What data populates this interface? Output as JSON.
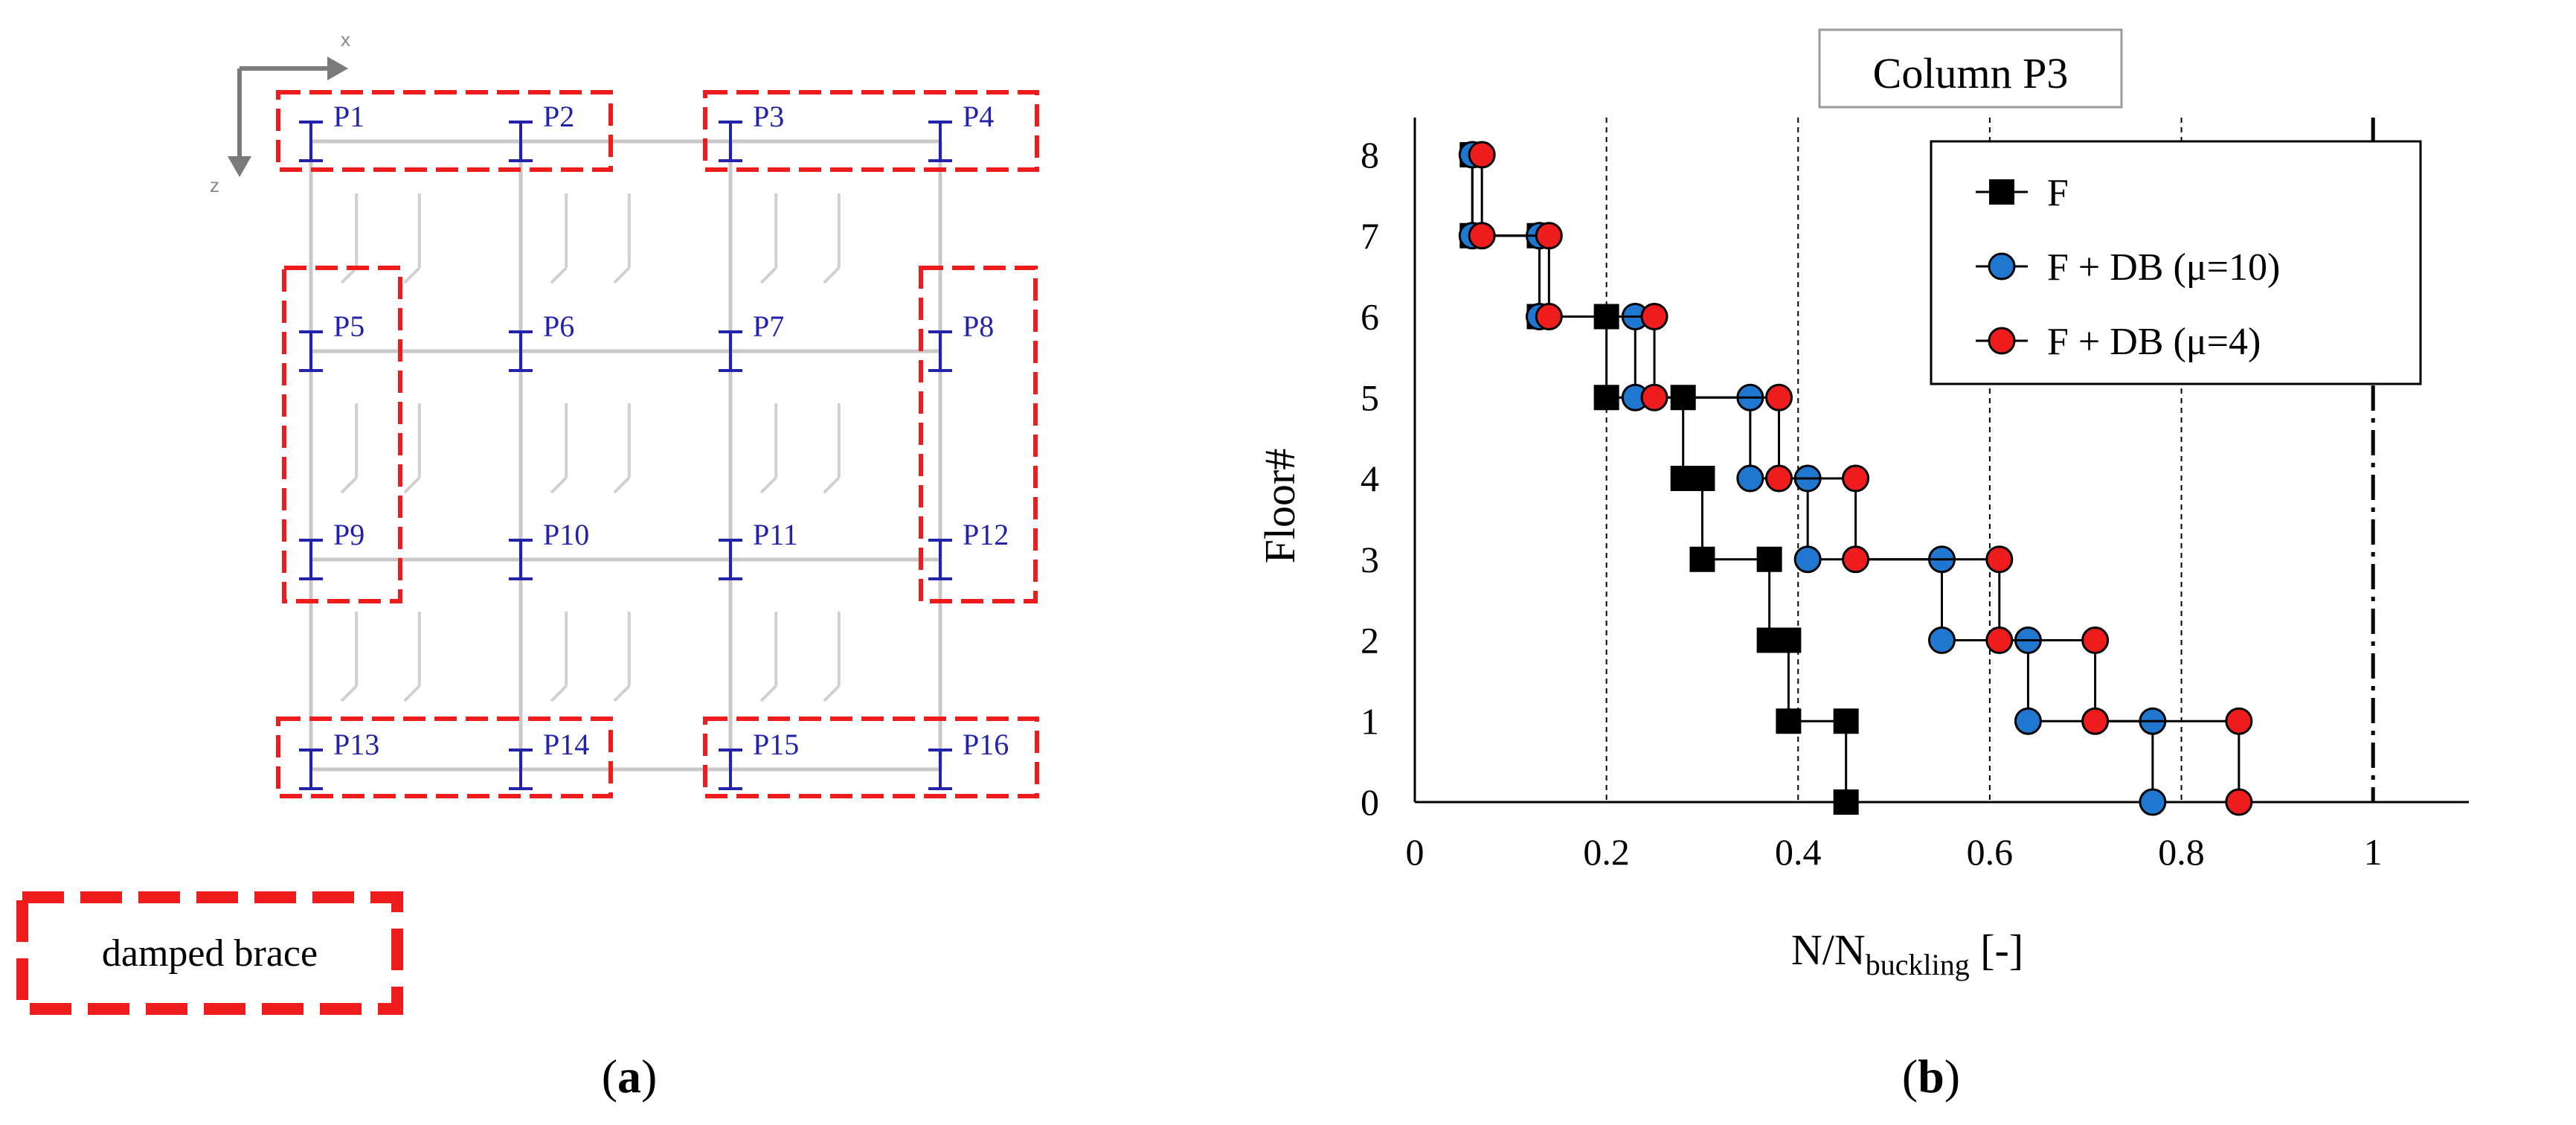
{
  "panel_a": {
    "label_prefix": "(",
    "label_letter": "a",
    "label_suffix": ")",
    "axis_x": "x",
    "axis_z": "z",
    "columns": [
      "P1",
      "P2",
      "P3",
      "P4",
      "P5",
      "P6",
      "P7",
      "P8",
      "P9",
      "P10",
      "P11",
      "P12",
      "P13",
      "P14",
      "P15",
      "P16"
    ],
    "legend_box_text": "damped brace",
    "colors": {
      "brace": "#ee1c1c",
      "column": "#2222aa",
      "beam": "#c8c8c8"
    }
  },
  "panel_b": {
    "label_prefix": "(",
    "label_letter": "b",
    "label_suffix": ")"
  },
  "chart_data": {
    "type": "line",
    "title": "Column P3",
    "xlabel_main": "N/N",
    "xlabel_sub": "buckling",
    "xlabel_unit": "[-]",
    "ylabel": "Floor#",
    "xlim": [
      0,
      1.1
    ],
    "ylim": [
      0,
      8
    ],
    "xticks": [
      0,
      0.2,
      0.4,
      0.6,
      0.8,
      1
    ],
    "xtick_labels": [
      "0",
      "0.2",
      "0.4",
      "0.6",
      "0.8",
      "1"
    ],
    "yticks": [
      0,
      1,
      2,
      3,
      4,
      5,
      6,
      7,
      8
    ],
    "ytick_labels": [
      "0",
      "1",
      "2",
      "3",
      "4",
      "5",
      "6",
      "7",
      "8"
    ],
    "dashed_gridlines_x": [
      0.2,
      0.4,
      0.6,
      0.8
    ],
    "limit_line_x": 1,
    "legend_position": "top-right",
    "series": [
      {
        "name": "F",
        "marker": "square",
        "color": "#000000",
        "points": [
          [
            0.45,
            0
          ],
          [
            0.45,
            1
          ],
          [
            0.39,
            1
          ],
          [
            0.39,
            2
          ],
          [
            0.37,
            2
          ],
          [
            0.37,
            3
          ],
          [
            0.3,
            3
          ],
          [
            0.3,
            4
          ],
          [
            0.28,
            4
          ],
          [
            0.28,
            5
          ],
          [
            0.2,
            5
          ],
          [
            0.2,
            6
          ],
          [
            0.13,
            6
          ],
          [
            0.13,
            7
          ],
          [
            0.06,
            7
          ],
          [
            0.06,
            8
          ]
        ]
      },
      {
        "name": "F + DB (μ=10)",
        "marker": "circle",
        "color": "#1f77d0",
        "points": [
          [
            0.77,
            0
          ],
          [
            0.77,
            1
          ],
          [
            0.64,
            1
          ],
          [
            0.64,
            2
          ],
          [
            0.55,
            2
          ],
          [
            0.55,
            3
          ],
          [
            0.41,
            3
          ],
          [
            0.41,
            4
          ],
          [
            0.35,
            4
          ],
          [
            0.35,
            5
          ],
          [
            0.23,
            5
          ],
          [
            0.23,
            6
          ],
          [
            0.13,
            6
          ],
          [
            0.13,
            7
          ],
          [
            0.06,
            7
          ],
          [
            0.06,
            8
          ]
        ]
      },
      {
        "name": "F + DB (μ=4)",
        "marker": "circle",
        "color": "#ee1c1c",
        "points": [
          [
            0.86,
            0
          ],
          [
            0.86,
            1
          ],
          [
            0.71,
            1
          ],
          [
            0.71,
            2
          ],
          [
            0.61,
            2
          ],
          [
            0.61,
            3
          ],
          [
            0.46,
            3
          ],
          [
            0.46,
            4
          ],
          [
            0.38,
            4
          ],
          [
            0.38,
            5
          ],
          [
            0.25,
            5
          ],
          [
            0.25,
            6
          ],
          [
            0.14,
            6
          ],
          [
            0.14,
            7
          ],
          [
            0.07,
            7
          ],
          [
            0.07,
            8
          ]
        ]
      }
    ]
  }
}
